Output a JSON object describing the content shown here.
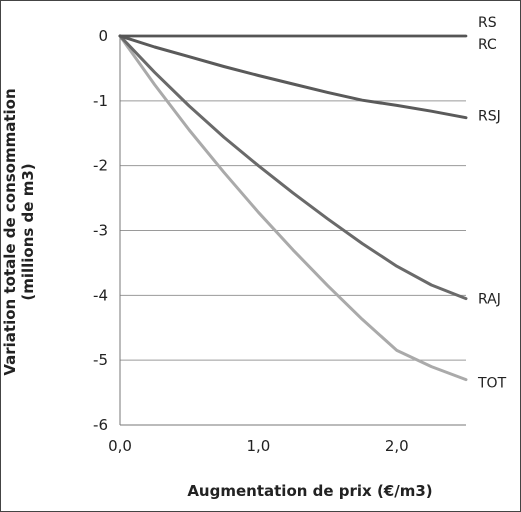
{
  "chart_data": {
    "type": "line",
    "title": "",
    "xlabel": "Augmentation de prix (€/m3)",
    "ylabel_line1": "Variation totale de consommation",
    "ylabel_line2": "(millions de m3)",
    "xlim": [
      0,
      2.5
    ],
    "ylim": [
      -6,
      0
    ],
    "x_ticks": [
      {
        "value": 0,
        "label": "0,0"
      },
      {
        "value": 1,
        "label": "1,0"
      },
      {
        "value": 2,
        "label": "2,0"
      }
    ],
    "y_ticks": [
      {
        "value": 0,
        "label": "0"
      },
      {
        "value": -1,
        "label": "-1"
      },
      {
        "value": -2,
        "label": "-2"
      },
      {
        "value": -3,
        "label": "-3"
      },
      {
        "value": -4,
        "label": "-4"
      },
      {
        "value": -5,
        "label": "-5"
      },
      {
        "value": -6,
        "label": "-6"
      }
    ],
    "grid": "horizontal",
    "legend": "inline-right",
    "x": [
      0,
      0.25,
      0.5,
      0.75,
      1.0,
      1.25,
      1.5,
      1.75,
      2.0,
      2.25,
      2.5
    ],
    "series": [
      {
        "name": "RS",
        "color": "#555555",
        "width": 2.5,
        "values": [
          0,
          0,
          0,
          0,
          0,
          0,
          0,
          0,
          0,
          0,
          0
        ]
      },
      {
        "name": "RC",
        "color": "#555555",
        "width": 2.5,
        "values": [
          0,
          0,
          0,
          0,
          0,
          0,
          0,
          0,
          0,
          0,
          0
        ]
      },
      {
        "name": "RSJ",
        "color": "#5a5a5a",
        "width": 3,
        "values": [
          0,
          -0.17,
          -0.32,
          -0.47,
          -0.61,
          -0.74,
          -0.87,
          -0.99,
          -1.07,
          -1.16,
          -1.26
        ]
      },
      {
        "name": "RAJ",
        "color": "#6a6a6a",
        "width": 3,
        "values": [
          0,
          -0.56,
          -1.08,
          -1.56,
          -2.0,
          -2.42,
          -2.82,
          -3.2,
          -3.55,
          -3.84,
          -4.05
        ]
      },
      {
        "name": "TOT",
        "color": "#aaaaaa",
        "width": 3,
        "values": [
          0,
          -0.75,
          -1.45,
          -2.1,
          -2.72,
          -3.3,
          -3.85,
          -4.37,
          -4.85,
          -5.1,
          -5.3
        ]
      }
    ]
  }
}
